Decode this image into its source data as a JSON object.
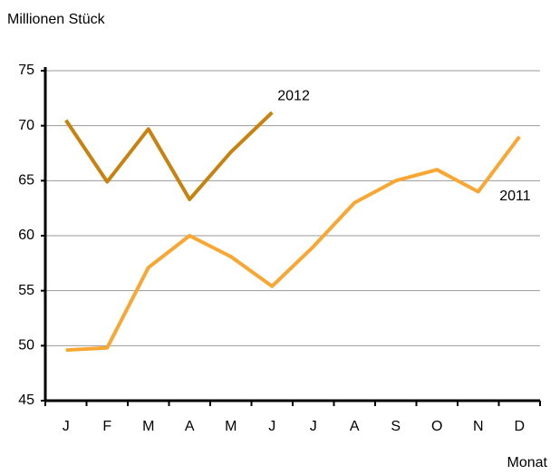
{
  "chart_data": {
    "type": "line",
    "y_label": "Millionen Stück",
    "x_label": "Monat",
    "categories": [
      "J",
      "F",
      "M",
      "A",
      "M",
      "J",
      "J",
      "A",
      "S",
      "O",
      "N",
      "D"
    ],
    "series": [
      {
        "name": "2011",
        "color": "#f9a732",
        "values": [
          49.6,
          49.8,
          57.1,
          60,
          58.1,
          55.4,
          59,
          63,
          65,
          66,
          64,
          69
        ]
      },
      {
        "name": "2012",
        "color": "#c8820f",
        "values": [
          70.5,
          64.9,
          69.7,
          63.3,
          67.6,
          71.2,
          null,
          null,
          null,
          null,
          null,
          null
        ]
      }
    ],
    "ylim": [
      45,
      75
    ],
    "yticks": [
      45,
      50,
      55,
      60,
      65,
      70,
      75
    ],
    "grid": true
  }
}
